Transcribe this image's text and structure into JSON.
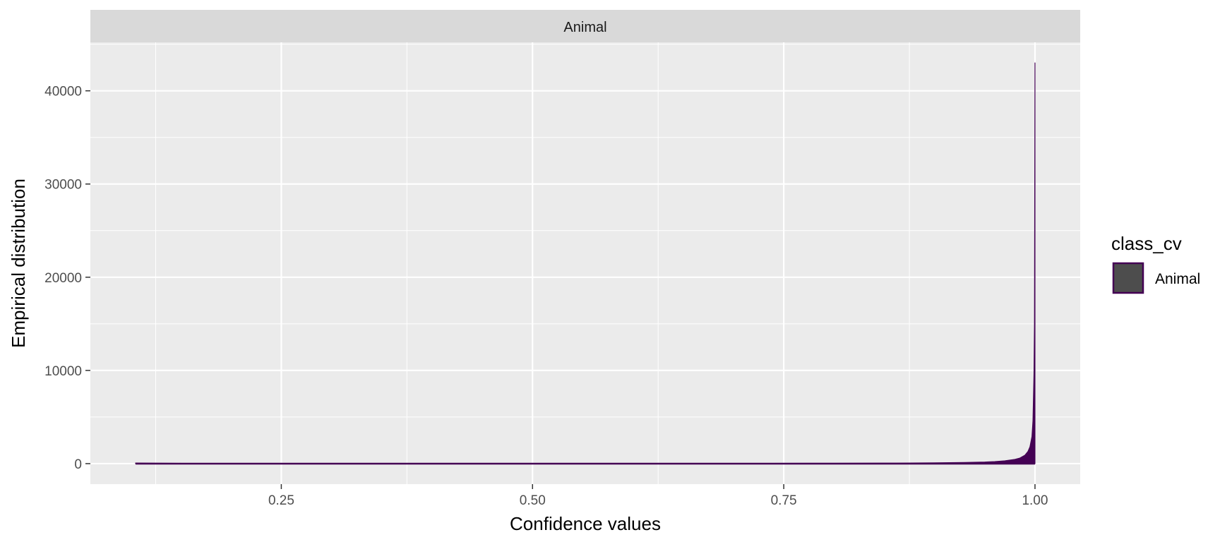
{
  "chart_data": {
    "type": "area",
    "facet_label": "Animal",
    "xlabel": "Confidence values",
    "ylabel": "Empirical distribution",
    "xlim": [
      0.06,
      1.045
    ],
    "ylim": [
      -2200,
      45200
    ],
    "x_ticks": [
      0.25,
      0.5,
      0.75,
      1.0
    ],
    "x_tick_labels": [
      "0.25",
      "0.50",
      "0.75",
      "1.00"
    ],
    "y_ticks": [
      0,
      10000,
      20000,
      30000,
      40000
    ],
    "y_tick_labels": [
      "0",
      "10000",
      "20000",
      "30000",
      "40000"
    ],
    "grid": true,
    "legend": {
      "title": "class_cv",
      "position": "right",
      "entries": [
        {
          "label": "Animal",
          "fill": "#4d4d4d",
          "outline": "#440154"
        }
      ]
    },
    "series": [
      {
        "name": "Animal",
        "color": "#440154",
        "x": [
          0.105,
          0.15,
          0.2,
          0.3,
          0.4,
          0.5,
          0.6,
          0.7,
          0.8,
          0.85,
          0.9,
          0.93,
          0.95,
          0.96,
          0.97,
          0.98,
          0.985,
          0.99,
          0.993,
          0.995,
          0.997,
          0.998,
          0.999,
          0.9995,
          1.0
        ],
        "values": [
          60,
          30,
          15,
          10,
          10,
          12,
          15,
          20,
          35,
          50,
          80,
          120,
          170,
          220,
          300,
          450,
          600,
          900,
          1300,
          1800,
          2900,
          4600,
          9600,
          15000,
          43000
        ]
      }
    ]
  }
}
